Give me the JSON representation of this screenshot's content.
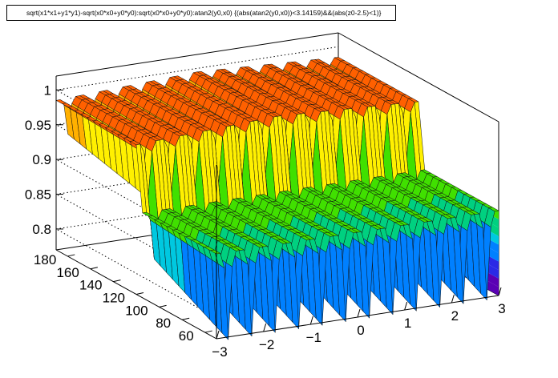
{
  "title": "sqrt(x1*x1+y1*y1)-sqrt(x0*x0+y0*y0):sqrt(x0*x0+y0*y0):atan2(y0,x0) {(abs(atan2(y0,x0))<3.14159)&&(abs(z0-2.5)<1)}",
  "chart_data": {
    "type": "surface",
    "title": "sqrt(x1*x1+y1*y1)-sqrt(x0*x0+y0*y0):sqrt(x0*x0+y0*y0):atan2(y0,x0) {(abs(atan2(y0,x0))<3.14159)&&(abs(z0-2.5)<1)}",
    "x_axis": {
      "ticks": [
        "−3",
        "−2",
        "−1",
        "0",
        "1",
        "2",
        "3"
      ],
      "range": [
        -3,
        3
      ]
    },
    "y_axis": {
      "ticks": [
        "60",
        "80",
        "100",
        "120",
        "140",
        "160",
        "180"
      ],
      "range": [
        50,
        190
      ]
    },
    "z_axis": {
      "ticks": [
        "0.8",
        "0.85",
        "0.9",
        "0.95",
        "1"
      ],
      "range": [
        0.77,
        1.02
      ]
    },
    "grid": true,
    "palette": [
      "#5a00b4",
      "#2a2ae6",
      "#0080ff",
      "#00c8e0",
      "#00d080",
      "#40e000",
      "#c0f000",
      "#fff000",
      "#ffb000",
      "#ff6000",
      "#e80000"
    ],
    "surface": {
      "n_sectors": 12,
      "high_row": {
        "y_from": 120,
        "y_to": 190,
        "baseline": 0.985,
        "dip_min": 0.905
      },
      "step_y": 118,
      "low_row": {
        "y_from": 50,
        "y_to": 118,
        "baseline": 0.892,
        "dip_min": 0.772
      },
      "back_wall": {
        "x": 3,
        "y_from": 50,
        "y_to": 118,
        "z_from": 0.77,
        "z_to": 0.892
      }
    }
  }
}
